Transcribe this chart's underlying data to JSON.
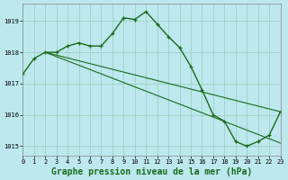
{
  "series_main": {
    "x": [
      0,
      1,
      2,
      3,
      4,
      5,
      6,
      7,
      8,
      9,
      10,
      11,
      12,
      13,
      14,
      15,
      16,
      17,
      18,
      19,
      20,
      21,
      22,
      23
    ],
    "y": [
      1017.3,
      1017.8,
      1018.0,
      1018.0,
      1018.2,
      1018.3,
      1018.2,
      1018.2,
      1018.6,
      1019.1,
      1019.05,
      1019.3,
      1018.9,
      1018.5,
      1018.15,
      1017.55,
      1016.8,
      1016.0,
      1015.8,
      1015.15,
      1015.0,
      1015.15,
      1015.35,
      1016.1
    ],
    "color": "#1a6b1a",
    "linewidth": 1.0,
    "marker": "+"
  },
  "series_aux": [
    {
      "x": [
        2,
        23
      ],
      "y": [
        1018.0,
        1016.1
      ]
    },
    {
      "x": [
        2,
        23
      ],
      "y": [
        1018.0,
        1015.1
      ]
    }
  ],
  "xlim": [
    0,
    23
  ],
  "ylim": [
    1014.7,
    1019.55
  ],
  "yticks": [
    1015,
    1016,
    1017,
    1018,
    1019
  ],
  "xticks": [
    0,
    1,
    2,
    3,
    4,
    5,
    6,
    7,
    8,
    9,
    10,
    11,
    12,
    13,
    14,
    15,
    16,
    17,
    18,
    19,
    20,
    21,
    22,
    23
  ],
  "xlabel": "Graphe pression niveau de la mer (hPa)",
  "background_color": "#bde8ee",
  "grid_color": "#99ccbb",
  "line_color": "#1a6b1a",
  "tick_fontsize": 5.0,
  "xlabel_fontsize": 7.0,
  "xlabel_color": "#1a6b1a"
}
